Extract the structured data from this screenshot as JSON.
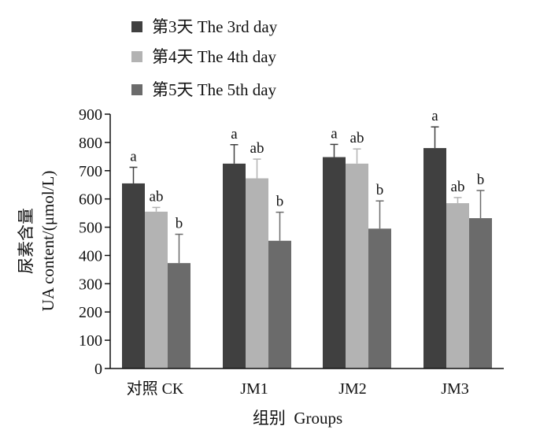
{
  "chart_data": {
    "type": "bar",
    "categories": [
      "对照  CK",
      "JM1",
      "JM2",
      "JM3"
    ],
    "xlabel": "组别  Groups",
    "ylabel_cn": "尿素含量",
    "ylabel_en": "UA content/(μmol/L)",
    "ylim": [
      0,
      900
    ],
    "yticks": [
      0,
      100,
      200,
      300,
      400,
      500,
      600,
      700,
      800,
      900
    ],
    "grid": false,
    "legend_position": "top-left",
    "series": [
      {
        "name": "第3天  The 3rd day",
        "color": "#404040",
        "values": [
          655,
          725,
          748,
          780
        ],
        "errors": [
          57,
          67,
          45,
          75
        ],
        "labels": [
          "a",
          "a",
          "a",
          "a"
        ]
      },
      {
        "name": "第4天  The 4th day",
        "color": "#b3b3b3",
        "values": [
          555,
          673,
          725,
          585
        ],
        "errors": [
          15,
          68,
          52,
          20
        ],
        "labels": [
          "ab",
          "ab",
          "ab",
          "ab"
        ]
      },
      {
        "name": "第5天  The 5th day",
        "color": "#6b6b6b",
        "values": [
          373,
          452,
          495,
          532
        ],
        "errors": [
          102,
          101,
          98,
          98
        ],
        "labels": [
          "b",
          "b",
          "b",
          "b"
        ]
      }
    ]
  }
}
